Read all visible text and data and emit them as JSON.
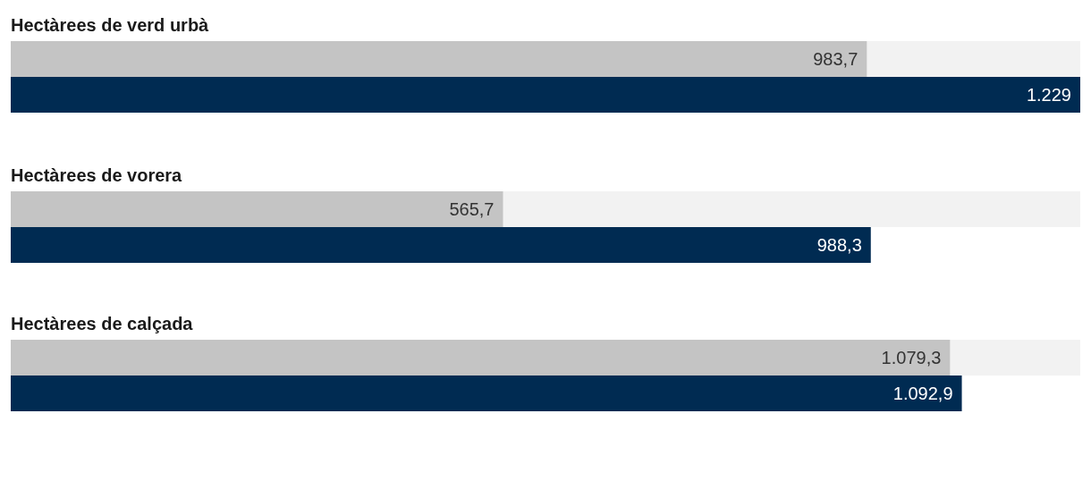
{
  "chart_data": {
    "type": "bar",
    "orientation": "horizontal",
    "categories": [
      "Hectàrees de verd urbà",
      "Hectàrees de vorera",
      "Hectàrees de calçada"
    ],
    "series": [
      {
        "color": "#c4c4c4",
        "values": [
          983.7,
          565.7,
          1079.3
        ],
        "value_labels": [
          "983,7",
          "565,7",
          "1.079,3"
        ]
      },
      {
        "color": "#002b52",
        "values": [
          1229,
          988.3,
          1092.9
        ],
        "value_labels": [
          "1.229",
          "988,3",
          "1.092,9"
        ]
      }
    ],
    "grid": false,
    "tick_labels": false
  }
}
